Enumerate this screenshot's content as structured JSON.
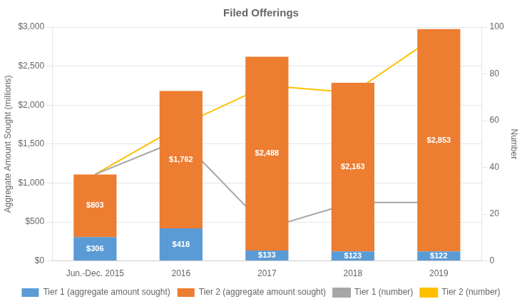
{
  "chart_data": {
    "type": "bar",
    "title": "Filed Offerings",
    "categories": [
      "Jun.-Dec. 2015",
      "2016",
      "2017",
      "2018",
      "2019"
    ],
    "y_label": "Aggregate Amount Sought (millions)",
    "y2_label": "Number",
    "stacked": true,
    "grid": true,
    "legend": "bottom",
    "data_labels": true,
    "ylim": [
      0,
      3000
    ],
    "yticks": [
      {
        "value": 0,
        "label": "$0"
      },
      {
        "value": 500,
        "label": "$500"
      },
      {
        "value": 1000,
        "label": "$1,000"
      },
      {
        "value": 1500,
        "label": "$1,500"
      },
      {
        "value": 2000,
        "label": "$2,000"
      },
      {
        "value": 2500,
        "label": "$2,500"
      },
      {
        "value": 3000,
        "label": "$3,000"
      }
    ],
    "y2lim": [
      0,
      100
    ],
    "y2ticks": [
      0,
      20,
      40,
      60,
      80,
      100
    ],
    "series": [
      {
        "name": "Tier 1 (aggregate amount sought)",
        "type": "bar",
        "color": "#5b9bd5",
        "values": [
          306,
          418,
          133,
          123,
          122
        ],
        "value_labels": [
          "$306",
          "$418",
          "$133",
          "$123",
          "$122"
        ]
      },
      {
        "name": "Tier 2 (aggregate amount sought)",
        "type": "bar",
        "color": "#ed7d31",
        "values": [
          803,
          1762,
          2488,
          2163,
          2853
        ],
        "value_labels": [
          "$803",
          "$1,762",
          "$2,488",
          "$2,163",
          "$2,853"
        ]
      },
      {
        "name": "Tier 1 (number)",
        "type": "line",
        "color": "#a6a6a6",
        "axis": "y2",
        "marker": "none",
        "values": [
          37,
          52,
          14,
          25,
          25
        ]
      },
      {
        "name": "Tier 2 (number)",
        "type": "line",
        "color": "#ffc000",
        "axis": "y2",
        "marker": "none",
        "values": [
          37,
          58,
          75,
          72,
          97
        ]
      }
    ]
  }
}
